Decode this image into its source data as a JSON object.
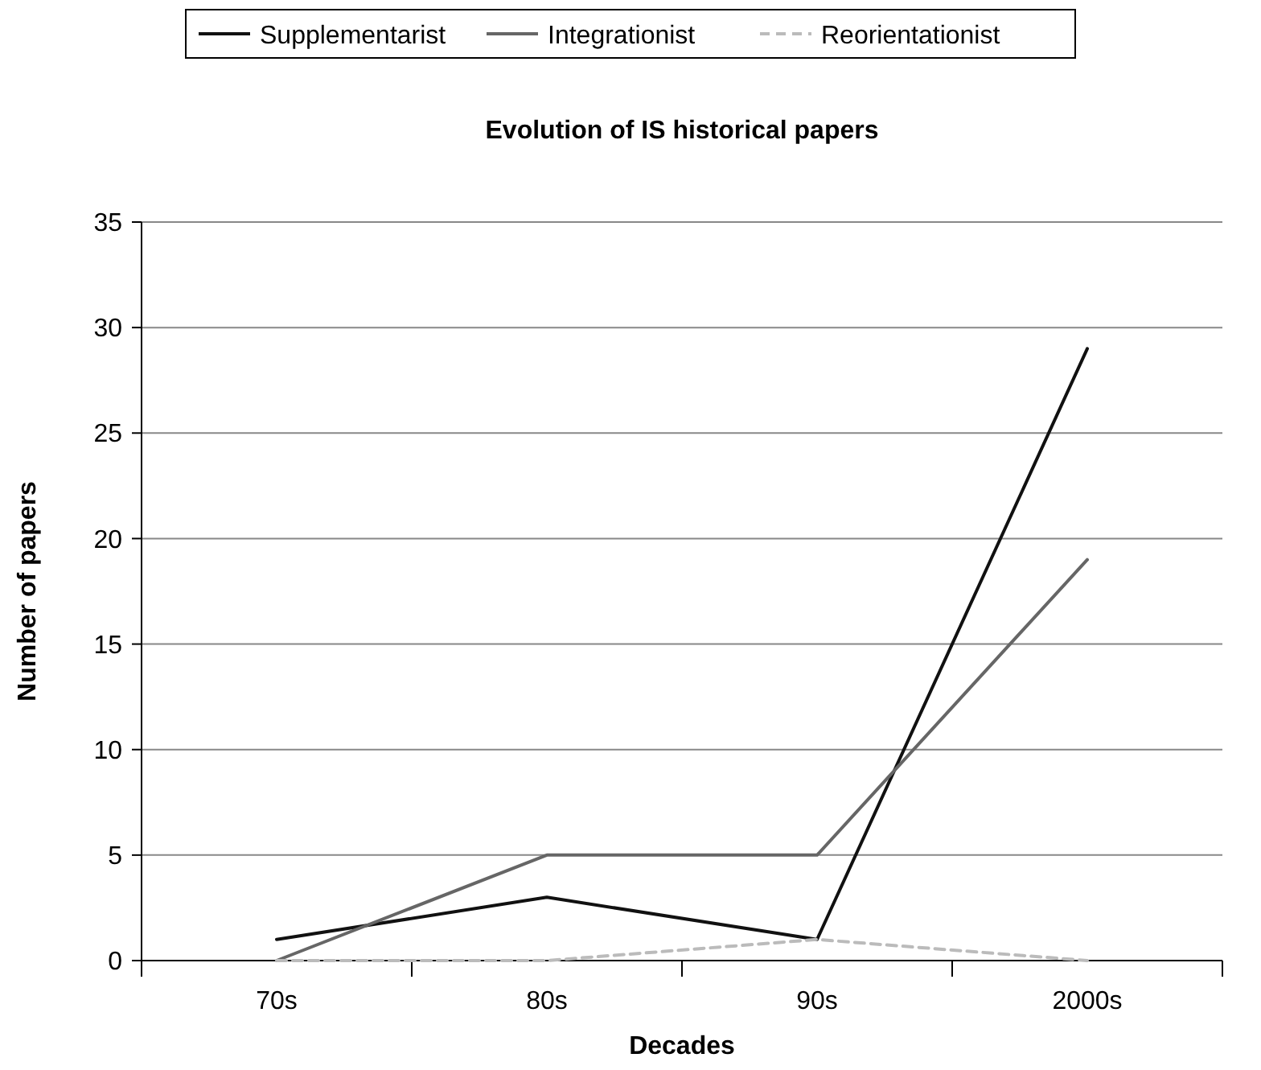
{
  "chart_data": {
    "type": "line",
    "title": "Evolution of IS historical papers",
    "xlabel": "Decades",
    "ylabel": "Number of papers",
    "categories": [
      "70s",
      "80s",
      "90s",
      "2000s"
    ],
    "series": [
      {
        "name": "Supplementarist",
        "color": "#111111",
        "values": [
          1,
          3,
          1,
          29
        ],
        "line_style": "solid"
      },
      {
        "name": "Integrationist",
        "color": "#666666",
        "values": [
          0,
          5,
          5,
          19
        ],
        "line_style": "solid"
      },
      {
        "name": "Reorientationist",
        "color": "#bbbbbb",
        "values": [
          0,
          0,
          1,
          0
        ],
        "line_style": "dashed"
      }
    ],
    "ylim": [
      0,
      35
    ],
    "yticks": [
      0,
      5,
      10,
      15,
      20,
      25,
      30,
      35
    ],
    "grid": "y",
    "legend": "top",
    "marker": "none"
  }
}
